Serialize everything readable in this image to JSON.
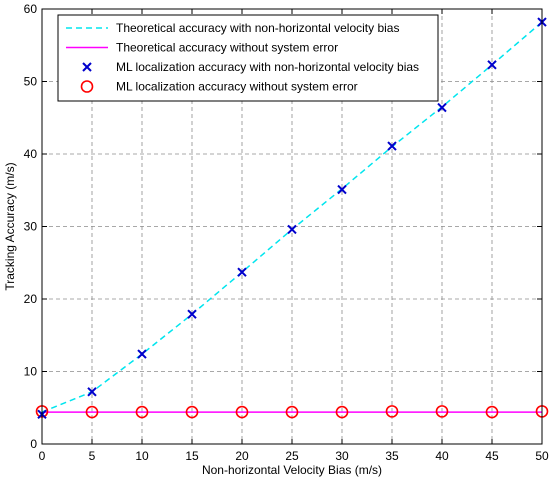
{
  "chart_data": {
    "type": "line",
    "title": "",
    "xlabel": "Non-horizontal Velocity Bias (m/s)",
    "ylabel": "Tracking Accuracy (m/s)",
    "xlim": [
      0,
      50
    ],
    "ylim": [
      0,
      60
    ],
    "xticks": [
      "0",
      "5",
      "10",
      "15",
      "20",
      "25",
      "30",
      "35",
      "40",
      "45",
      "50"
    ],
    "yticks": [
      "0",
      "10",
      "20",
      "30",
      "40",
      "50",
      "60"
    ],
    "grid": true,
    "legend_position": "top-left",
    "x": [
      0,
      5,
      10,
      15,
      20,
      25,
      30,
      35,
      40,
      45,
      50
    ],
    "series": [
      {
        "name": "Theoretical accuracy with non-horizontal velocity bias",
        "style": "dashed-line",
        "color": "#00e5ee",
        "values": [
          4.4,
          7.2,
          12.4,
          17.9,
          23.7,
          29.6,
          35.2,
          41.0,
          46.5,
          52.3,
          58.2
        ]
      },
      {
        "name": "Theoretical accuracy without system error",
        "style": "solid-line",
        "color": "#ff00ff",
        "values": [
          4.4,
          4.4,
          4.4,
          4.4,
          4.4,
          4.4,
          4.4,
          4.4,
          4.4,
          4.4,
          4.4
        ]
      },
      {
        "name": "ML localization accuracy with non-horizontal velocity bias",
        "style": "x-marker",
        "color": "#0000cc",
        "values": [
          4.1,
          7.2,
          12.4,
          17.9,
          23.7,
          29.6,
          35.1,
          41.1,
          46.4,
          52.3,
          58.2
        ]
      },
      {
        "name": "ML localization accuracy without system error",
        "style": "circle-marker",
        "color": "#ff0000",
        "values": [
          4.5,
          4.4,
          4.4,
          4.4,
          4.4,
          4.4,
          4.4,
          4.5,
          4.5,
          4.4,
          4.5
        ]
      }
    ]
  }
}
